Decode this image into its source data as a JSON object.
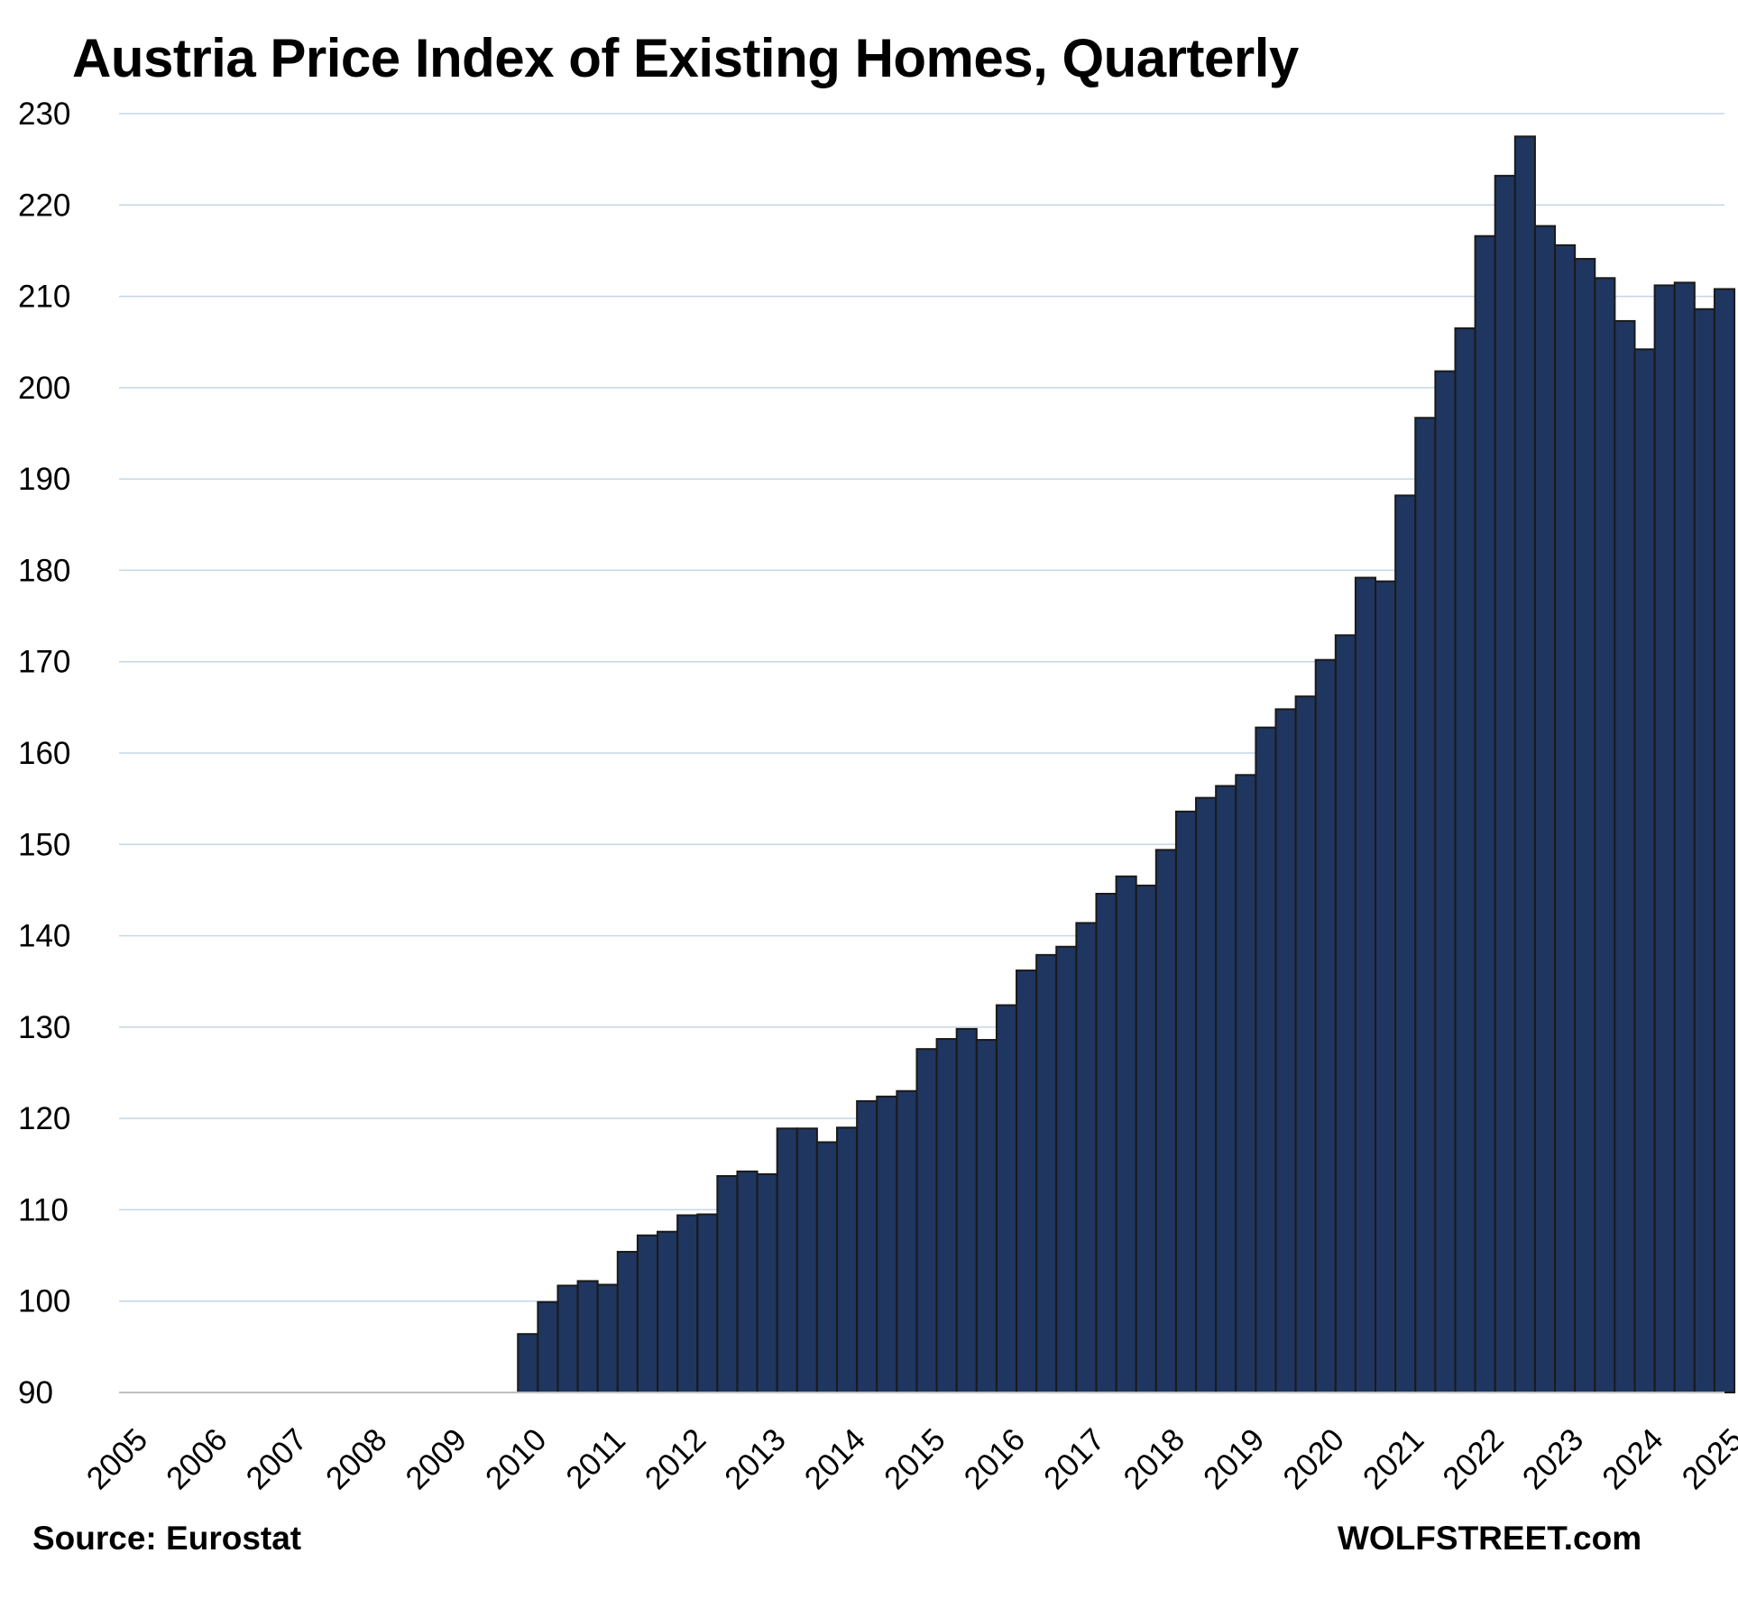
{
  "chart_data": {
    "type": "bar",
    "title": "Austria Price Index of Existing Homes, Quarterly",
    "xlabel": "",
    "ylabel": "",
    "ylim": [
      90,
      230
    ],
    "yticks": [
      90,
      100,
      110,
      120,
      130,
      140,
      150,
      160,
      170,
      180,
      190,
      200,
      210,
      220,
      230
    ],
    "x_tick_labels": [
      "2005",
      "2006",
      "2007",
      "2008",
      "2009",
      "2010",
      "2011",
      "2012",
      "2013",
      "2014",
      "2015",
      "2016",
      "2017",
      "2018",
      "2019",
      "2020",
      "2021",
      "2022",
      "2023",
      "2024",
      "2025"
    ],
    "grid": true,
    "legend": "none",
    "bar_color": "#1f3660",
    "bar_edge_color": "#1a1a1a",
    "grid_color": "#c5d6e6",
    "categories": [
      "2005 Q1",
      "2005 Q2",
      "2005 Q3",
      "2005 Q4",
      "2006 Q1",
      "2006 Q2",
      "2006 Q3",
      "2006 Q4",
      "2007 Q1",
      "2007 Q2",
      "2007 Q3",
      "2007 Q4",
      "2008 Q1",
      "2008 Q2",
      "2008 Q3",
      "2008 Q4",
      "2009 Q1",
      "2009 Q2",
      "2009 Q3",
      "2009 Q4",
      "2010 Q1",
      "2010 Q2",
      "2010 Q3",
      "2010 Q4",
      "2011 Q1",
      "2011 Q2",
      "2011 Q3",
      "2011 Q4",
      "2012 Q1",
      "2012 Q2",
      "2012 Q3",
      "2012 Q4",
      "2013 Q1",
      "2013 Q2",
      "2013 Q3",
      "2013 Q4",
      "2014 Q1",
      "2014 Q2",
      "2014 Q3",
      "2014 Q4",
      "2015 Q1",
      "2015 Q2",
      "2015 Q3",
      "2015 Q4",
      "2016 Q1",
      "2016 Q2",
      "2016 Q3",
      "2016 Q4",
      "2017 Q1",
      "2017 Q2",
      "2017 Q3",
      "2017 Q4",
      "2018 Q1",
      "2018 Q2",
      "2018 Q3",
      "2018 Q4",
      "2019 Q1",
      "2019 Q2",
      "2019 Q3",
      "2019 Q4",
      "2020 Q1",
      "2020 Q2",
      "2020 Q3",
      "2020 Q4",
      "2021 Q1",
      "2021 Q2",
      "2021 Q3",
      "2021 Q4",
      "2022 Q1",
      "2022 Q2",
      "2022 Q3",
      "2022 Q4",
      "2023 Q1",
      "2023 Q2",
      "2023 Q3",
      "2023 Q4",
      "2024 Q1",
      "2024 Q2",
      "2024 Q3",
      "2024 Q4",
      "2025 Q1"
    ],
    "values": [
      null,
      null,
      null,
      null,
      null,
      null,
      null,
      null,
      null,
      null,
      null,
      null,
      null,
      null,
      null,
      null,
      null,
      null,
      null,
      null,
      96.4,
      99.9,
      101.7,
      102.2,
      101.8,
      105.4,
      107.2,
      107.6,
      109.4,
      109.5,
      113.7,
      114.2,
      113.9,
      118.9,
      118.9,
      117.4,
      119.0,
      121.9,
      122.4,
      123.0,
      127.6,
      128.7,
      129.8,
      128.6,
      132.4,
      136.2,
      137.9,
      138.8,
      141.4,
      144.6,
      146.5,
      145.5,
      149.4,
      153.6,
      155.1,
      156.4,
      157.6,
      162.8,
      164.8,
      166.2,
      170.2,
      172.9,
      179.2,
      178.8,
      188.2,
      196.7,
      201.8,
      206.5,
      216.6,
      223.2,
      227.5,
      217.7,
      215.6,
      214.1,
      212.0,
      207.3,
      204.2,
      211.2,
      211.5,
      208.6,
      210.8
    ]
  },
  "footer": {
    "source": "Source: Eurostat",
    "credit": "WOLFSTREET.com"
  }
}
